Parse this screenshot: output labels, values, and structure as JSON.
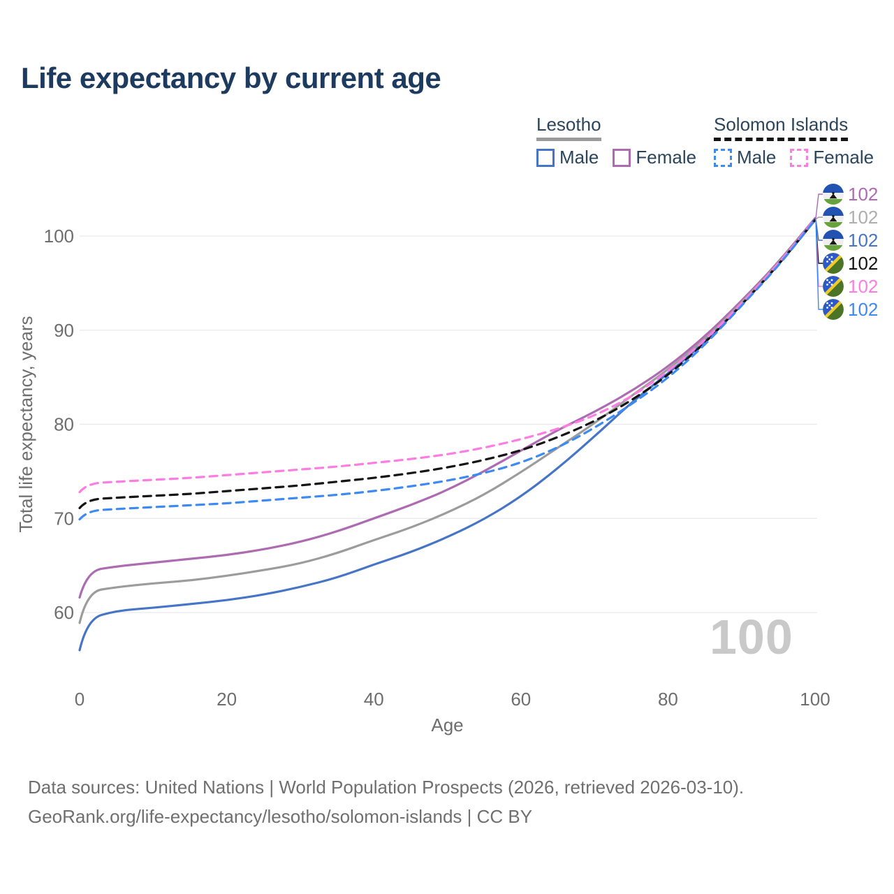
{
  "title": "Life expectancy by current age",
  "legend": {
    "groups": [
      {
        "name": "Lesotho",
        "line_style": "solid",
        "underline_color": "#9b9b9b",
        "items": [
          {
            "label": "Male",
            "color": "#4675c8"
          },
          {
            "label": "Female",
            "color": "#ad6cb2"
          }
        ]
      },
      {
        "name": "Solomon Islands",
        "line_style": "dashed",
        "underline_color": "#141414",
        "items": [
          {
            "label": "Male",
            "color": "#3e8af3"
          },
          {
            "label": "Female",
            "color": "#ff7de2"
          }
        ]
      }
    ]
  },
  "chart_data": {
    "type": "line",
    "title": "Life expectancy by current age",
    "xlabel": "Age",
    "ylabel": "Total life expectancy, years",
    "xlim": [
      0,
      100
    ],
    "ylim": [
      55,
      103
    ],
    "x_ticks": [
      0,
      20,
      40,
      60,
      80,
      100
    ],
    "y_ticks": [
      60,
      70,
      80,
      90,
      100
    ],
    "grid": "horizontal",
    "legend_position": "top-right",
    "x": [
      0,
      1,
      5,
      10,
      15,
      20,
      25,
      30,
      35,
      40,
      45,
      50,
      55,
      60,
      65,
      70,
      75,
      80,
      85,
      90,
      95,
      100
    ],
    "series": [
      {
        "id": "lesotho-female",
        "name": "Lesotho — Female",
        "country": "Lesotho",
        "sex": "female",
        "dash": "solid",
        "color": "#ad6cb2",
        "flag": "lesotho",
        "end_label": "102",
        "values": [
          61.6,
          64.4,
          64.9,
          65.3,
          65.7,
          66.1,
          66.7,
          67.5,
          68.6,
          70.0,
          71.4,
          73.0,
          75.0,
          77.2,
          79.4,
          81.3,
          83.5,
          86.1,
          89.3,
          93.1,
          97.2,
          101.9
        ]
      },
      {
        "id": "lesotho-total",
        "name": "Lesotho — Both sexes",
        "country": "Lesotho",
        "sex": "both",
        "dash": "solid",
        "color": "#9c9c9c",
        "label_color": "#aeaeae",
        "flag": "lesotho",
        "end_label": "102",
        "values": [
          58.9,
          62.2,
          62.7,
          63.1,
          63.4,
          63.9,
          64.5,
          65.2,
          66.3,
          67.7,
          69.0,
          70.6,
          72.5,
          74.9,
          77.5,
          80.1,
          83.0,
          85.8,
          89.0,
          92.9,
          97.1,
          101.8
        ]
      },
      {
        "id": "lesotho-male",
        "name": "Lesotho — Male",
        "country": "Lesotho",
        "sex": "male",
        "dash": "solid",
        "color": "#4675c8",
        "flag": "lesotho",
        "end_label": "102",
        "values": [
          56.0,
          59.3,
          60.2,
          60.5,
          60.9,
          61.3,
          61.9,
          62.7,
          63.7,
          65.1,
          66.4,
          68.0,
          69.9,
          72.3,
          75.3,
          78.7,
          82.3,
          85.4,
          88.7,
          92.7,
          96.9,
          101.8
        ]
      },
      {
        "id": "solomon-islands-total",
        "name": "Solomon Islands — Both sexes",
        "country": "Solomon Islands",
        "sex": "both",
        "dash": "dashed",
        "color": "#141414",
        "flag": "solomon-islands",
        "end_label": "102",
        "values": [
          71.1,
          72.0,
          72.2,
          72.4,
          72.6,
          72.9,
          73.2,
          73.5,
          73.9,
          74.3,
          74.8,
          75.4,
          76.2,
          77.2,
          78.6,
          80.3,
          82.5,
          85.2,
          88.6,
          92.7,
          96.9,
          101.7
        ]
      },
      {
        "id": "solomon-islands-female",
        "name": "Solomon Islands — Female",
        "country": "Solomon Islands",
        "sex": "female",
        "dash": "dashed",
        "color": "#ff7de2",
        "flag": "solomon-islands",
        "end_label": "102",
        "values": [
          72.8,
          73.7,
          73.9,
          74.1,
          74.3,
          74.6,
          74.9,
          75.2,
          75.5,
          75.9,
          76.3,
          76.8,
          77.5,
          78.4,
          79.5,
          80.9,
          82.9,
          85.6,
          88.9,
          92.8,
          97.0,
          101.8
        ]
      },
      {
        "id": "solomon-islands-male",
        "name": "Solomon Islands — Male",
        "country": "Solomon Islands",
        "sex": "male",
        "dash": "dashed",
        "color": "#3e8af3",
        "flag": "solomon-islands",
        "end_label": "102",
        "values": [
          69.9,
          70.8,
          71.0,
          71.2,
          71.4,
          71.6,
          71.9,
          72.2,
          72.5,
          72.9,
          73.4,
          74.0,
          74.8,
          75.9,
          77.5,
          79.6,
          82.1,
          84.9,
          88.4,
          92.6,
          96.8,
          101.7
        ]
      }
    ]
  },
  "watermark": "100",
  "footer": {
    "sources": "Data sources: United Nations | World Population Prospects (2026, retrieved 2026-03-10).",
    "attribution": "GeoRank.org/life-expectancy/lesotho/solomon-islands | CC BY"
  }
}
